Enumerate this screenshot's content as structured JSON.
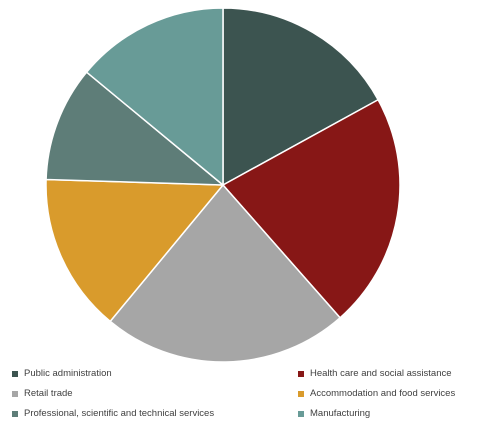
{
  "chart_data": {
    "type": "pie",
    "title": "",
    "legend_position": "bottom",
    "slices": [
      {
        "label": "Public administration",
        "value": 17.0,
        "color": "#3c5450"
      },
      {
        "label": "Health care and social assistance",
        "value": 21.5,
        "color": "#871716"
      },
      {
        "label": "Retail trade",
        "value": 22.5,
        "color": "#a6a6a6"
      },
      {
        "label": "Accommodation and food services",
        "value": 14.5,
        "color": "#d99b2c"
      },
      {
        "label": "Professional, scientific and technical services",
        "value": 10.5,
        "color": "#5e7d78"
      },
      {
        "label": "Manufacturing",
        "value": 14.0,
        "color": "#689b97"
      }
    ]
  }
}
